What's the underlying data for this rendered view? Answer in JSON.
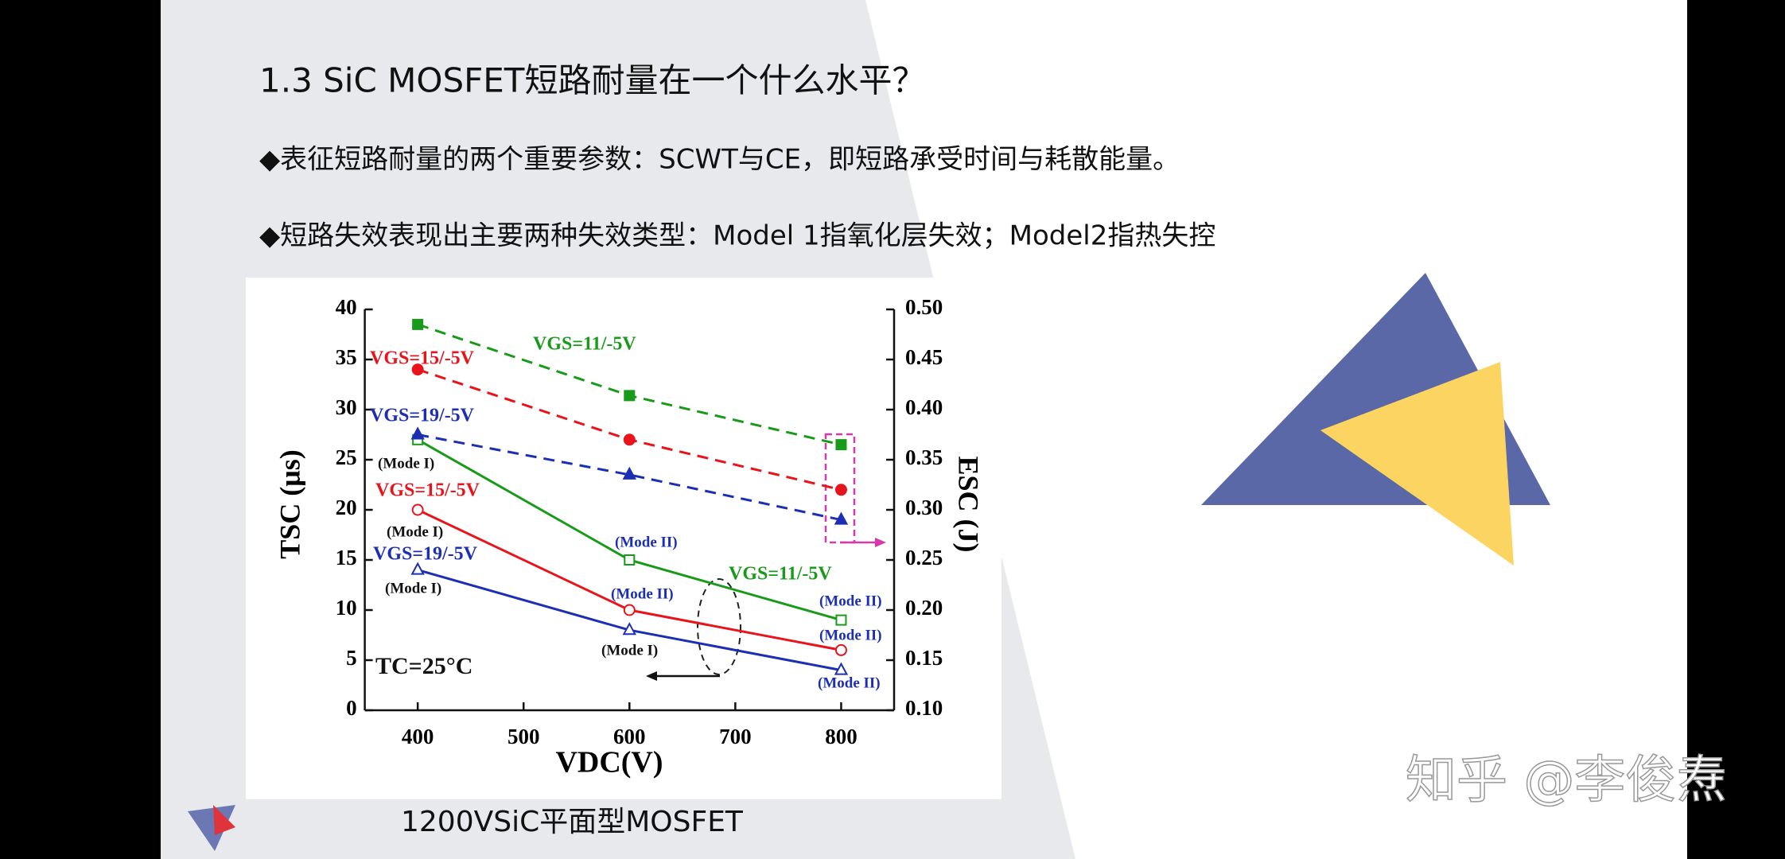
{
  "slide": {
    "title": "1.3 SiC MOSFET短路耐量在一个什么水平？",
    "bullets": [
      "◆表征短路耐量的两个重要参数：SCWT与CE，即短路承受时间与耗散能量。",
      "◆短路失效表现出主要两种失效类型：Model 1指氧化层失效；Model2指热失控"
    ],
    "caption": "1200VSiC平面型MOSFET",
    "watermark": "知乎 @李俊焘"
  },
  "chart": {
    "type": "line",
    "x_label": "VDC(V)",
    "y_label": "TSC (μs)",
    "y2_label": "ESC (J)",
    "x": [
      400,
      600,
      800
    ],
    "xlim": [
      350,
      850
    ],
    "xticks": [
      400,
      500,
      600,
      700,
      800
    ],
    "ylim": [
      0,
      40
    ],
    "yticks": [
      0,
      5,
      10,
      15,
      20,
      25,
      30,
      35,
      40
    ],
    "y2lim": [
      0.1,
      0.5
    ],
    "y2ticks": [
      {
        "value": 0.1,
        "label": "0.10"
      },
      {
        "value": 0.15,
        "label": "0.15"
      },
      {
        "value": 0.2,
        "label": "0.20"
      },
      {
        "value": 0.25,
        "label": "0.25"
      },
      {
        "value": 0.3,
        "label": "0.30"
      },
      {
        "value": 0.35,
        "label": "0.35"
      },
      {
        "value": 0.4,
        "label": "0.40"
      },
      {
        "value": 0.45,
        "label": "0.45"
      },
      {
        "value": 0.5,
        "label": "0.50"
      }
    ],
    "series": [
      {
        "color": "#1a9a1a",
        "marker": "square",
        "values": [
          27,
          15,
          9
        ]
      },
      {
        "color": "#e8141c",
        "marker": "circle",
        "values": [
          20,
          10,
          6
        ]
      },
      {
        "color": "#1c2fb4",
        "marker": "triangle",
        "values": [
          14,
          8,
          4
        ]
      },
      {
        "color": "#1a9a1a",
        "marker": "square",
        "axis": "y2",
        "dashed": true,
        "values": [
          0.485,
          0.414,
          0.365
        ]
      },
      {
        "color": "#e8141c",
        "marker": "circle",
        "axis": "y2",
        "dashed": true,
        "values": [
          0.44,
          0.37,
          0.32
        ]
      },
      {
        "color": "#1c2fb4",
        "marker": "triangle",
        "axis": "y2",
        "dashed": true,
        "values": [
          0.375,
          0.335,
          0.29
        ]
      }
    ],
    "annotations": [
      {
        "text": "VGS=11/-5V",
        "color": "#1a9a1a"
      },
      {
        "text": "VGS=15/-5V",
        "color": "#e8141c"
      },
      {
        "text": "VGS=19/-5V",
        "color": "#1c2fb4"
      },
      {
        "text": "(Mode I)",
        "color": "#111"
      },
      {
        "text": "VGS=15/-5V",
        "color": "#e8141c"
      },
      {
        "text": "(Mode I)",
        "color": "#111"
      },
      {
        "text": "VGS=19/-5V",
        "color": "#1c2fb4"
      },
      {
        "text": "(Mode I)",
        "color": "#111"
      },
      {
        "text": "(Mode II)",
        "color": "#1c2fb4"
      },
      {
        "text": "VGS=11/-5V",
        "color": "#1a9a1a"
      },
      {
        "text": "(Mode II)",
        "color": "#1c2fb4"
      },
      {
        "text": "(Mode I)",
        "color": "#111"
      },
      {
        "text": "(Mode II)",
        "color": "#1c2fb4"
      },
      {
        "text": "(Mode II)",
        "color": "#1c2fb4"
      },
      {
        "text": "(Mode II)",
        "color": "#1c2fb4"
      },
      {
        "text": "TC=25°C",
        "color": "#111"
      }
    ]
  }
}
